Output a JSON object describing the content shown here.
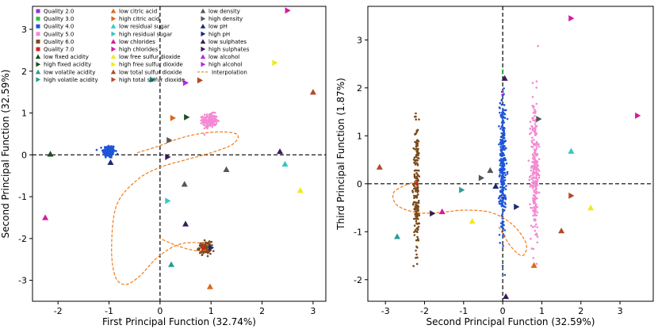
{
  "chart_data": [
    {
      "type": "scatter",
      "xlabel": "First Principal Function (32.74%)",
      "ylabel": "Second Principal Function (32.59%)",
      "xlim": [
        -2.5,
        3.25
      ],
      "ylim": [
        -3.5,
        3.55
      ],
      "xticks": [
        -2,
        -1,
        0,
        1,
        2,
        3
      ],
      "yticks": [
        -3,
        -2,
        -1,
        0,
        1,
        2,
        3
      ],
      "clusters": [
        {
          "quality": "Quality 4.0",
          "cx": -1.0,
          "cy": 0.08,
          "sx": 0.06,
          "sy": 0.08,
          "n": 160
        },
        {
          "quality": "Quality 5.0",
          "cx": 0.98,
          "cy": 0.82,
          "sx": 0.07,
          "sy": 0.08,
          "n": 180
        },
        {
          "quality": "Quality 6.0",
          "cx": 0.88,
          "cy": -2.22,
          "sx": 0.06,
          "sy": 0.07,
          "n": 120
        },
        {
          "quality": "Quality 7.0",
          "cx": 0.86,
          "cy": -2.24,
          "sx": 0.02,
          "sy": 0.03,
          "n": 8
        }
      ],
      "markers": [
        {
          "feature": "low fixed acidity",
          "x": -2.15,
          "y": 0.02
        },
        {
          "feature": "high fixed acidity",
          "x": 0.52,
          "y": 0.9
        },
        {
          "feature": "low volatile acidity",
          "x": 0.22,
          "y": -2.62
        },
        {
          "feature": "high volatile acidity",
          "x": -0.15,
          "y": 1.8
        },
        {
          "feature": "low citric acid",
          "x": 0.98,
          "y": -3.15
        },
        {
          "feature": "high citric acid",
          "x": 0.25,
          "y": 0.88
        },
        {
          "feature": "low residual sugar",
          "x": 2.45,
          "y": -0.22
        },
        {
          "feature": "high residual sugar",
          "x": 0.15,
          "y": -1.1
        },
        {
          "feature": "low chlorides",
          "x": -2.25,
          "y": -1.5
        },
        {
          "feature": "high chlorides",
          "x": 2.5,
          "y": 3.45
        },
        {
          "feature": "low free sulfur dioxide",
          "x": 2.75,
          "y": -0.85
        },
        {
          "feature": "high free sulfur dioxide",
          "x": 2.25,
          "y": 2.2
        },
        {
          "feature": "low total sulfur dioxide",
          "x": 3.0,
          "y": 1.5
        },
        {
          "feature": "high total sulfur dioxide",
          "x": 0.78,
          "y": 1.78
        },
        {
          "feature": "low density",
          "x": 1.3,
          "y": -0.35
        },
        {
          "feature": "high density",
          "x": 0.18,
          "y": 0.35
        },
        {
          "feature": "low pH",
          "x": -0.97,
          "y": -0.18
        },
        {
          "feature": "high pH",
          "x": 1.0,
          "y": -2.22
        },
        {
          "feature": "low sulphates",
          "x": 2.35,
          "y": 0.08
        },
        {
          "feature": "high sulphates",
          "x": 0.15,
          "y": -0.05
        },
        {
          "feature": "high alcohol",
          "x": 0.5,
          "y": 1.72
        },
        {
          "feature": "low sulphates",
          "x": 0.5,
          "y": -1.65
        },
        {
          "feature": "low density",
          "x": 0.48,
          "y": -0.7
        }
      ],
      "interpolation": [
        [
          -0.45,
          0.05
        ],
        [
          -0.05,
          0.2
        ],
        [
          0.35,
          0.38
        ],
        [
          0.75,
          0.5
        ],
        [
          1.2,
          0.55
        ],
        [
          1.52,
          0.48
        ],
        [
          1.42,
          0.25
        ],
        [
          1.0,
          0.05
        ],
        [
          0.5,
          -0.12
        ],
        [
          0.0,
          -0.3
        ],
        [
          -0.45,
          -0.6
        ],
        [
          -0.85,
          -1.2
        ],
        [
          -0.95,
          -2.2
        ],
        [
          -0.88,
          -2.9
        ],
        [
          -0.68,
          -3.1
        ],
        [
          -0.4,
          -2.9
        ],
        [
          -0.05,
          -2.45
        ],
        [
          0.35,
          -2.15
        ],
        [
          0.75,
          -2.1
        ],
        [
          0.98,
          -2.2
        ],
        [
          0.78,
          -2.3
        ],
        [
          0.4,
          -2.2
        ],
        [
          0.0,
          -2.0
        ]
      ]
    },
    {
      "type": "scatter",
      "xlabel": "Second Principal Function (32.59%)",
      "ylabel": "Third Principal Function (1.87%)",
      "xlim": [
        -3.45,
        3.85
      ],
      "ylim": [
        -2.45,
        3.7
      ],
      "xticks": [
        -3,
        -2,
        -1,
        0,
        1,
        2,
        3
      ],
      "yticks": [
        -2,
        -1,
        0,
        1,
        2,
        3
      ],
      "clusters": [
        {
          "quality": "Quality 4.0",
          "cx": 0.0,
          "cy": 0.35,
          "sx": 0.04,
          "sy": 0.75,
          "n": 280
        },
        {
          "quality": "Quality 5.0",
          "cx": 0.82,
          "cy": 0.3,
          "sx": 0.05,
          "sy": 0.75,
          "n": 260
        },
        {
          "quality": "Quality 6.0",
          "cx": -2.2,
          "cy": -0.05,
          "sx": 0.04,
          "sy": 0.7,
          "n": 200
        },
        {
          "quality": "Quality 2.0",
          "cx": 0.0,
          "cy": 1.9,
          "sx": 0.01,
          "sy": 0.02,
          "n": 2
        },
        {
          "quality": "Quality 3.0",
          "cx": 0.0,
          "cy": 2.35,
          "sx": 0.01,
          "sy": 0.02,
          "n": 2
        },
        {
          "quality": "Quality 7.0",
          "cx": -2.2,
          "cy": 0.02,
          "sx": 0.01,
          "sy": 0.02,
          "n": 3
        }
      ],
      "markers": [
        {
          "feature": "high chlorides",
          "x": 1.75,
          "y": 3.45
        },
        {
          "feature": "high chlorides",
          "x": 3.45,
          "y": 1.42
        },
        {
          "feature": "low sulphates",
          "x": 0.05,
          "y": 2.2
        },
        {
          "feature": "high density",
          "x": 0.92,
          "y": 1.35
        },
        {
          "feature": "low residual sugar",
          "x": 1.75,
          "y": 0.68
        },
        {
          "feature": "high total sulfur dioxide",
          "x": 1.75,
          "y": -0.25
        },
        {
          "feature": "low free sulfur dioxide",
          "x": 2.25,
          "y": -0.5
        },
        {
          "feature": "low total sulfur dioxide",
          "x": 1.5,
          "y": -0.98
        },
        {
          "feature": "low citric acid",
          "x": 0.8,
          "y": -1.7
        },
        {
          "feature": "low sulphates",
          "x": 0.08,
          "y": -2.35
        },
        {
          "feature": "low total sulfur dioxide",
          "x": -3.15,
          "y": 0.35
        },
        {
          "feature": "low volatile acidity",
          "x": -2.7,
          "y": -1.1
        },
        {
          "feature": "low chlorides",
          "x": -1.55,
          "y": -0.58
        },
        {
          "feature": "high sulphates",
          "x": -1.8,
          "y": -0.62
        },
        {
          "feature": "low free sulfur dioxide",
          "x": -0.78,
          "y": -0.78
        },
        {
          "feature": "high volatile acidity",
          "x": -1.05,
          "y": -0.13
        },
        {
          "feature": "low density",
          "x": -0.32,
          "y": 0.28
        },
        {
          "feature": "high density",
          "x": -0.55,
          "y": 0.12
        },
        {
          "feature": "high pH",
          "x": 0.35,
          "y": -0.48
        },
        {
          "feature": "low pH",
          "x": -0.18,
          "y": -0.05
        }
      ],
      "interpolation": [
        [
          -2.2,
          0.05
        ],
        [
          -2.55,
          -0.05
        ],
        [
          -2.8,
          -0.2
        ],
        [
          -2.7,
          -0.45
        ],
        [
          -2.2,
          -0.6
        ],
        [
          -1.6,
          -0.6
        ],
        [
          -1.0,
          -0.55
        ],
        [
          -0.3,
          -0.6
        ],
        [
          0.25,
          -0.85
        ],
        [
          0.6,
          -1.25
        ],
        [
          0.5,
          -1.5
        ],
        [
          0.2,
          -1.3
        ],
        [
          -0.1,
          -0.9
        ]
      ]
    }
  ],
  "legend": [
    {
      "label": "Quality 2.0",
      "color": "#9b2fd6",
      "marker": "square"
    },
    {
      "label": "Quality 3.0",
      "color": "#2fc43a",
      "marker": "square"
    },
    {
      "label": "Quality 4.0",
      "color": "#1f55d8",
      "marker": "square"
    },
    {
      "label": "Quality 5.0",
      "color": "#f38ad3",
      "marker": "square"
    },
    {
      "label": "Quality 6.0",
      "color": "#7a4a1c",
      "marker": "square"
    },
    {
      "label": "Quality 7.0",
      "color": "#d62020",
      "marker": "square"
    },
    {
      "label": "low fixed acidity",
      "color": "#1f4d1f",
      "marker": "up"
    },
    {
      "label": "high fixed acidity",
      "color": "#1f4d1f",
      "marker": "right"
    },
    {
      "label": "low volatile acidity",
      "color": "#2a9c95",
      "marker": "up"
    },
    {
      "label": "high volatile acidity",
      "color": "#2a9c95",
      "marker": "right"
    },
    {
      "label": "low citric acid",
      "color": "#d96a1e",
      "marker": "up"
    },
    {
      "label": "high citric acid",
      "color": "#d96a1e",
      "marker": "right"
    },
    {
      "label": "low residual sugar",
      "color": "#33c8c0",
      "marker": "up"
    },
    {
      "label": "high residual sugar",
      "color": "#33c8c0",
      "marker": "right"
    },
    {
      "label": "low chlorides",
      "color": "#d61a9c",
      "marker": "up"
    },
    {
      "label": "high chlorides",
      "color": "#d61a9c",
      "marker": "right"
    },
    {
      "label": "low free sulfur dioxide",
      "color": "#f0ea1a",
      "marker": "up"
    },
    {
      "label": "high free sulfur dioxide",
      "color": "#f0ea1a",
      "marker": "right"
    },
    {
      "label": "low total sulfur dioxide",
      "color": "#b34a2a",
      "marker": "up"
    },
    {
      "label": "high total sulfur dioxide",
      "color": "#b34a2a",
      "marker": "right"
    },
    {
      "label": "low density",
      "color": "#555555",
      "marker": "up"
    },
    {
      "label": "high density",
      "color": "#555555",
      "marker": "right"
    },
    {
      "label": "low pH",
      "color": "#1a2a7a",
      "marker": "up"
    },
    {
      "label": "high pH",
      "color": "#1a2a7a",
      "marker": "right"
    },
    {
      "label": "low sulphates",
      "color": "#3a1a5a",
      "marker": "up"
    },
    {
      "label": "high sulphates",
      "color": "#3a1a5a",
      "marker": "right"
    },
    {
      "label": "low alcohol",
      "color": "#b52ae0",
      "marker": "up"
    },
    {
      "label": "high alcohol",
      "color": "#b52ae0",
      "marker": "right"
    },
    {
      "label": "Interpolation",
      "color": "#f07d1a",
      "marker": "dash"
    }
  ]
}
